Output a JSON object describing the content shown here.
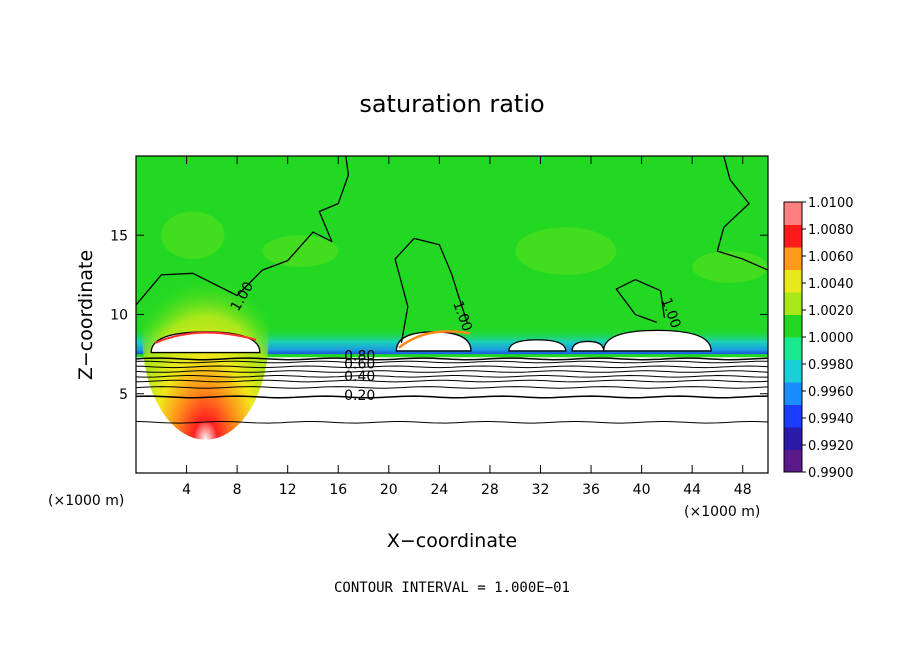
{
  "chart_data": {
    "type": "heatmap",
    "title": "saturation ratio",
    "xlabel": "X−coordinate",
    "ylabel": "Z−coordinate",
    "x_unit": "(×1000 m)",
    "z_unit": "(×1000 m)",
    "footer": "CONTOUR INTERVAL = 1.000E−01",
    "xlim": [
      0,
      50
    ],
    "ylim": [
      0,
      20
    ],
    "x_ticks": [
      4,
      8,
      12,
      16,
      20,
      24,
      28,
      32,
      36,
      40,
      44,
      48
    ],
    "y_ticks": [
      5,
      10,
      15
    ],
    "colorbar": {
      "min": 0.99,
      "max": 1.01,
      "ticks": [
        "1.0100",
        "1.0080",
        "1.0060",
        "1.0040",
        "1.0020",
        "1.0000",
        "0.9980",
        "0.9960",
        "0.9940",
        "0.9920",
        "0.9900"
      ],
      "colors": [
        "#5a1a8a",
        "#2a1aa8",
        "#1a3cff",
        "#1a8cff",
        "#1ad0d8",
        "#1ae890",
        "#22d822",
        "#a8e81a",
        "#e8e81a",
        "#ff9a1a",
        "#ff1a1a",
        "#ff8080"
      ]
    },
    "contour_labels": [
      {
        "text": "1.00",
        "x": 8.7,
        "z": 11.0
      },
      {
        "text": "1.00",
        "x": 25.5,
        "z": 9.8
      },
      {
        "text": "1.00",
        "x": 42.0,
        "z": 10.0
      },
      {
        "text": "0.80",
        "x": 17.7,
        "z": 7.1
      },
      {
        "text": "0.60",
        "x": 17.7,
        "z": 6.6
      },
      {
        "text": "0.40",
        "x": 17.7,
        "z": 5.8
      },
      {
        "text": "0.20",
        "x": 17.7,
        "z": 4.6
      }
    ],
    "contour_lines_z": [
      7.2,
      7.0,
      6.7,
      6.4,
      6.1,
      5.8,
      5.4,
      4.8,
      3.2
    ]
  }
}
